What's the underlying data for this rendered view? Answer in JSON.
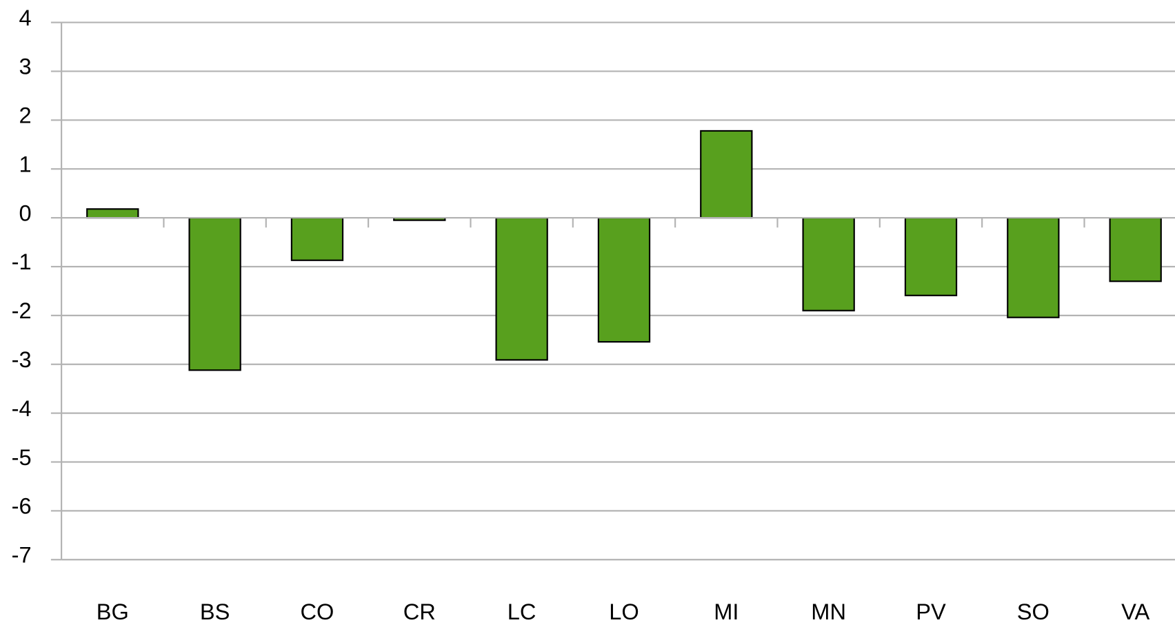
{
  "chart_data": {
    "type": "bar",
    "categories": [
      "BG",
      "BS",
      "CO",
      "CR",
      "LC",
      "LO",
      "MI",
      "MN",
      "PV",
      "SO",
      "VA"
    ],
    "values": [
      0.18,
      -3.12,
      -0.87,
      -0.05,
      -2.91,
      -2.54,
      1.78,
      -1.9,
      -1.59,
      -2.04,
      -1.3
    ],
    "color": "#58a01e",
    "ylim": [
      -7,
      4
    ],
    "yticks": [
      -7,
      -6,
      -5,
      -4,
      -3,
      -2,
      -1,
      0,
      1,
      2,
      3,
      4
    ],
    "negative_tick_color": "#ff0000",
    "grid": true
  }
}
